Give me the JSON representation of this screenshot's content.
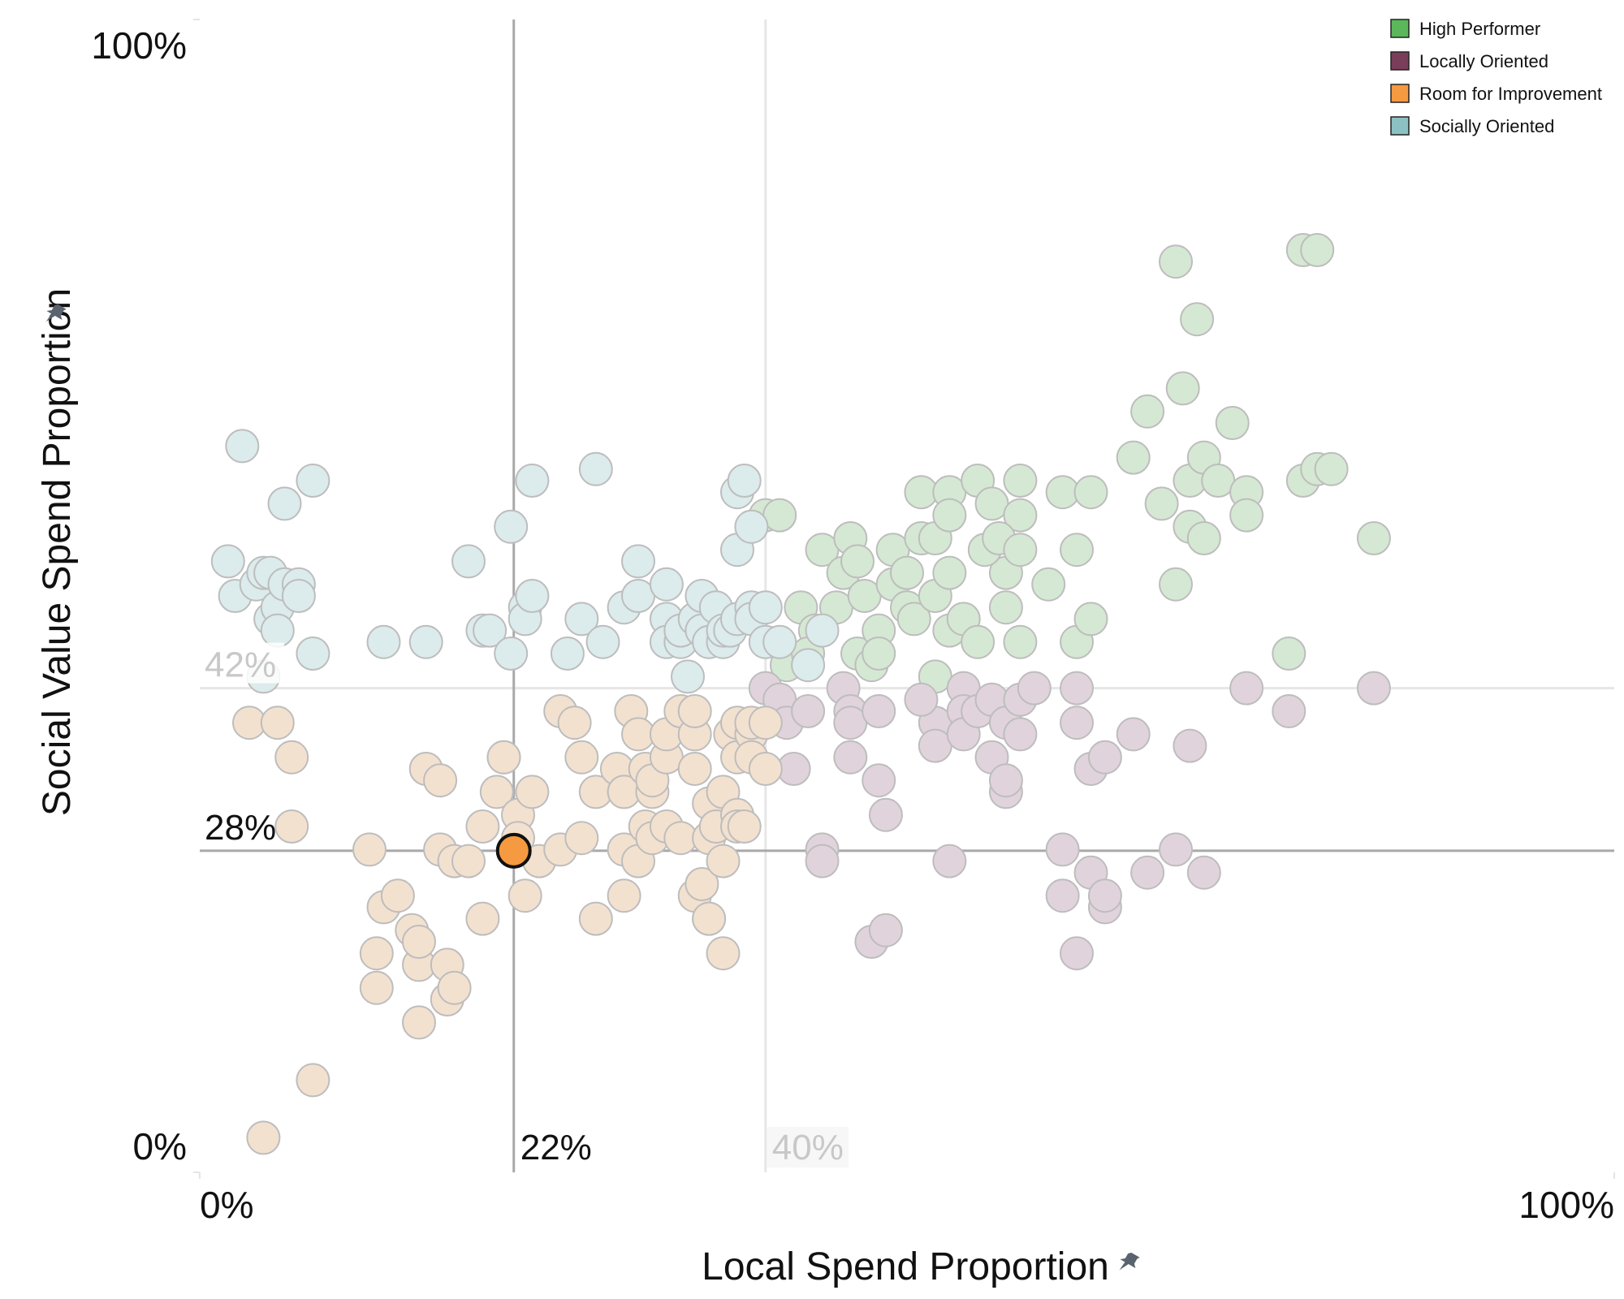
{
  "chart_data": {
    "type": "scatter",
    "title": "",
    "xlabel": "Local Spend Proportion",
    "ylabel": "Social Value Spend Proportion",
    "xlim": [
      0,
      100
    ],
    "ylim": [
      0,
      100
    ],
    "x_ticks": [
      "0%",
      "100%"
    ],
    "y_ticks": [
      "0%",
      "100%"
    ],
    "legend_position": "top-right",
    "grid": false,
    "icons": {
      "pin": "pin-icon"
    },
    "reference_lines": {
      "x_primary": {
        "value": 22.2,
        "label": "22%"
      },
      "x_secondary": {
        "value": 40,
        "label": "40%"
      },
      "y_primary": {
        "value": 27.9,
        "label": "28%"
      },
      "y_secondary": {
        "value": 42,
        "label": "42%"
      }
    },
    "highlight": {
      "x": 22.2,
      "y": 27.9,
      "series": "Room for Improvement"
    },
    "series": [
      {
        "name": "High Performer",
        "color": "#5bb85a",
        "faded_color": "#d5e8d3",
        "points": [
          [
            40,
            57
          ],
          [
            41,
            57
          ],
          [
            42.5,
            49
          ],
          [
            43.5,
            47
          ],
          [
            44,
            54
          ],
          [
            45,
            49
          ],
          [
            45.5,
            52
          ],
          [
            46,
            55
          ],
          [
            46.5,
            53
          ],
          [
            46.5,
            45
          ],
          [
            47,
            50
          ],
          [
            47.5,
            44
          ],
          [
            48,
            47
          ],
          [
            48,
            45
          ],
          [
            49,
            51
          ],
          [
            49,
            54
          ],
          [
            50,
            52
          ],
          [
            50,
            49
          ],
          [
            51,
            59
          ],
          [
            51,
            55
          ],
          [
            50.5,
            48
          ],
          [
            52,
            55
          ],
          [
            52,
            50
          ],
          [
            52,
            43
          ],
          [
            53,
            59
          ],
          [
            53,
            57
          ],
          [
            53,
            52
          ],
          [
            53,
            47
          ],
          [
            54,
            48
          ],
          [
            55,
            60
          ],
          [
            55,
            46
          ],
          [
            56,
            58
          ],
          [
            57,
            52
          ],
          [
            57,
            49
          ],
          [
            58,
            60
          ],
          [
            58,
            57
          ],
          [
            55.5,
            54
          ],
          [
            56.5,
            55
          ],
          [
            58,
            54
          ],
          [
            58,
            46
          ],
          [
            60,
            51
          ],
          [
            61,
            59
          ],
          [
            62,
            54
          ],
          [
            62,
            46
          ],
          [
            63,
            59
          ],
          [
            63,
            48
          ],
          [
            66,
            62
          ],
          [
            67,
            66
          ],
          [
            68,
            58
          ],
          [
            69,
            51
          ],
          [
            70,
            60
          ],
          [
            70,
            56
          ],
          [
            71,
            62
          ],
          [
            71,
            55
          ],
          [
            72,
            60
          ],
          [
            73,
            65
          ],
          [
            69.5,
            68
          ],
          [
            70.5,
            74
          ],
          [
            69,
            79
          ],
          [
            74,
            59
          ],
          [
            74,
            57
          ],
          [
            77,
            45
          ],
          [
            78,
            60
          ],
          [
            79,
            61
          ],
          [
            78,
            80
          ],
          [
            79,
            80
          ],
          [
            80,
            61
          ],
          [
            83,
            55
          ],
          [
            41.5,
            44
          ],
          [
            43,
            45
          ]
        ]
      },
      {
        "name": "Locally Oriented",
        "color": "#7a3e5b",
        "faded_color": "#e1d3dc",
        "points": [
          [
            40,
            42
          ],
          [
            41,
            41
          ],
          [
            41.5,
            39
          ],
          [
            42,
            35
          ],
          [
            43,
            40
          ],
          [
            44,
            28
          ],
          [
            44,
            27
          ],
          [
            45.5,
            42
          ],
          [
            46,
            40
          ],
          [
            46,
            36
          ],
          [
            46,
            39
          ],
          [
            48,
            40
          ],
          [
            48,
            34
          ],
          [
            47.5,
            20
          ],
          [
            48.5,
            21
          ],
          [
            48.5,
            31
          ],
          [
            52,
            39
          ],
          [
            51,
            41
          ],
          [
            52,
            37
          ],
          [
            53,
            27
          ],
          [
            54,
            42
          ],
          [
            54,
            40
          ],
          [
            54,
            38
          ],
          [
            55,
            40
          ],
          [
            56,
            41
          ],
          [
            56,
            36
          ],
          [
            57,
            33
          ],
          [
            57,
            39
          ],
          [
            58,
            41
          ],
          [
            58,
            38
          ],
          [
            57,
            34
          ],
          [
            59,
            42
          ],
          [
            61,
            28
          ],
          [
            61,
            24
          ],
          [
            62,
            19
          ],
          [
            62,
            39
          ],
          [
            62,
            42
          ],
          [
            63,
            35
          ],
          [
            63,
            26
          ],
          [
            64,
            36
          ],
          [
            64,
            23
          ],
          [
            64,
            24
          ],
          [
            66,
            38
          ],
          [
            67,
            26
          ],
          [
            69,
            28
          ],
          [
            70,
            37
          ],
          [
            71,
            26
          ],
          [
            74,
            42
          ],
          [
            77,
            40
          ],
          [
            83,
            42
          ]
        ]
      },
      {
        "name": "Room for Improvement",
        "color": "#f59a40",
        "faded_color": "#f3e1cf",
        "points": [
          [
            3.5,
            39
          ],
          [
            5.5,
            39
          ],
          [
            6.5,
            36
          ],
          [
            6.5,
            30
          ],
          [
            4.5,
            3
          ],
          [
            8,
            8
          ],
          [
            12,
            28
          ],
          [
            12.5,
            16
          ],
          [
            13,
            23
          ],
          [
            12.5,
            19
          ],
          [
            14,
            24
          ],
          [
            15,
            21
          ],
          [
            15.5,
            13
          ],
          [
            15.5,
            18
          ],
          [
            15.5,
            20
          ],
          [
            16,
            35
          ],
          [
            17,
            34
          ],
          [
            17,
            28
          ],
          [
            18,
            27
          ],
          [
            17.5,
            15
          ],
          [
            17.5,
            18
          ],
          [
            18,
            16
          ],
          [
            19,
            27
          ],
          [
            20,
            22
          ],
          [
            20,
            30
          ],
          [
            21,
            33
          ],
          [
            21.5,
            36
          ],
          [
            21.5,
            36
          ],
          [
            22.5,
            31
          ],
          [
            22.5,
            29
          ],
          [
            23,
            24
          ],
          [
            23.5,
            33
          ],
          [
            24,
            27
          ],
          [
            25.5,
            28
          ],
          [
            25.5,
            40
          ],
          [
            26.5,
            39
          ],
          [
            27,
            29
          ],
          [
            27,
            36
          ],
          [
            28,
            33
          ],
          [
            28,
            22
          ],
          [
            30,
            28
          ],
          [
            29.5,
            35
          ],
          [
            30,
            33
          ],
          [
            30,
            24
          ],
          [
            30,
            33
          ],
          [
            30.5,
            40
          ],
          [
            31,
            38
          ],
          [
            31,
            27
          ],
          [
            31.5,
            30
          ],
          [
            32,
            29
          ],
          [
            31.5,
            35
          ],
          [
            32,
            33
          ],
          [
            32,
            34
          ],
          [
            33,
            36
          ],
          [
            33,
            38
          ],
          [
            33,
            30
          ],
          [
            34,
            29
          ],
          [
            34,
            40
          ],
          [
            35,
            38
          ],
          [
            35,
            35
          ],
          [
            35,
            40
          ],
          [
            35,
            24
          ],
          [
            35.5,
            25
          ],
          [
            36,
            32
          ],
          [
            36,
            29
          ],
          [
            36,
            22
          ],
          [
            36,
            22
          ],
          [
            36.5,
            30
          ],
          [
            37,
            27
          ],
          [
            37,
            33
          ],
          [
            37,
            19
          ],
          [
            38,
            31
          ],
          [
            37.5,
            38
          ],
          [
            38,
            36
          ],
          [
            38,
            39
          ],
          [
            38,
            30
          ],
          [
            38.5,
            30
          ],
          [
            39,
            38
          ],
          [
            39,
            36
          ],
          [
            39,
            39
          ],
          [
            40,
            35
          ],
          [
            40,
            39
          ]
        ]
      },
      {
        "name": "Socially Oriented",
        "color": "#8cc1c3",
        "faded_color": "#dcebec",
        "points": [
          [
            3,
            63
          ],
          [
            2,
            53
          ],
          [
            2.5,
            50
          ],
          [
            4,
            51
          ],
          [
            4.5,
            52
          ],
          [
            5,
            48
          ],
          [
            5,
            52
          ],
          [
            5.5,
            49
          ],
          [
            5.5,
            47
          ],
          [
            6,
            58
          ],
          [
            6,
            51
          ],
          [
            7,
            51
          ],
          [
            7,
            50
          ],
          [
            8,
            60
          ],
          [
            8,
            45
          ],
          [
            4.5,
            43
          ],
          [
            13,
            46
          ],
          [
            16,
            46
          ],
          [
            19,
            53
          ],
          [
            20,
            47
          ],
          [
            20.5,
            47
          ],
          [
            22,
            56
          ],
          [
            22,
            45
          ],
          [
            23,
            49
          ],
          [
            23,
            48
          ],
          [
            23.5,
            50
          ],
          [
            23.5,
            60
          ],
          [
            26,
            45
          ],
          [
            27,
            48
          ],
          [
            28,
            61
          ],
          [
            28.5,
            46
          ],
          [
            30,
            49
          ],
          [
            31,
            53
          ],
          [
            31,
            50
          ],
          [
            33,
            48
          ],
          [
            33,
            51
          ],
          [
            33,
            46
          ],
          [
            34,
            46
          ],
          [
            34,
            47
          ],
          [
            34.5,
            43
          ],
          [
            35,
            48
          ],
          [
            35.5,
            50
          ],
          [
            35.5,
            47
          ],
          [
            36,
            46
          ],
          [
            36.5,
            49
          ],
          [
            37,
            46
          ],
          [
            37,
            47
          ],
          [
            37.5,
            47
          ],
          [
            38,
            48
          ],
          [
            38,
            54
          ],
          [
            38,
            59
          ],
          [
            38.5,
            60
          ],
          [
            39,
            49
          ],
          [
            39,
            56
          ],
          [
            39,
            48
          ],
          [
            40,
            46
          ],
          [
            40,
            49
          ],
          [
            41,
            46
          ],
          [
            43,
            44
          ],
          [
            44,
            47
          ]
        ]
      }
    ]
  },
  "legend": {
    "items": [
      {
        "label": "High Performer",
        "color": "#5bb85a"
      },
      {
        "label": "Locally Oriented",
        "color": "#7a3e5b"
      },
      {
        "label": "Room for Improvement",
        "color": "#f59a40"
      },
      {
        "label": "Socially Oriented",
        "color": "#8cc1c3"
      }
    ]
  }
}
